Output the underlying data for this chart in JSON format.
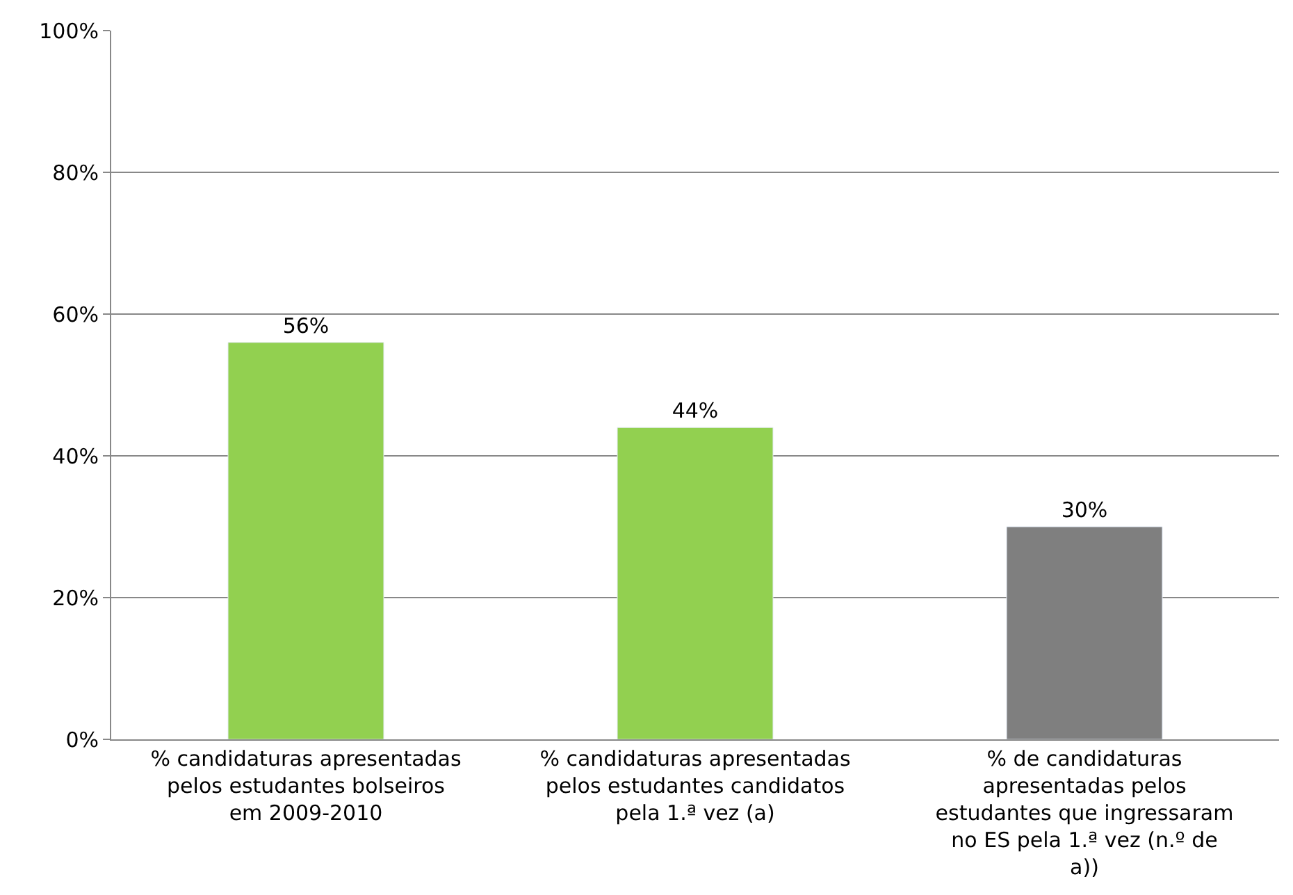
{
  "chart_data": {
    "type": "bar",
    "categories": [
      "% candidaturas apresentadas pelos estudantes bolseiros em 2009-2010",
      "% candidaturas apresentadas pelos estudantes candidatos pela 1.ª vez (a)",
      "% de candidaturas apresentadas pelos estudantes que ingressaram no ES pela 1.ª vez (n.º de a))"
    ],
    "values": [
      56,
      44,
      30
    ],
    "colors": [
      "#92d050",
      "#92d050",
      "#7f7f7f"
    ],
    "value_labels": [
      "56%",
      "44%",
      "30%"
    ],
    "ylim": [
      0,
      100
    ],
    "yticks": [
      {
        "value": 0,
        "label": "0%"
      },
      {
        "value": 20,
        "label": "20%"
      },
      {
        "value": 40,
        "label": "40%"
      },
      {
        "value": 60,
        "label": "60%"
      },
      {
        "value": 80,
        "label": "80%"
      },
      {
        "value": 100,
        "label": "100%"
      }
    ],
    "grid": "y",
    "legend": false
  }
}
